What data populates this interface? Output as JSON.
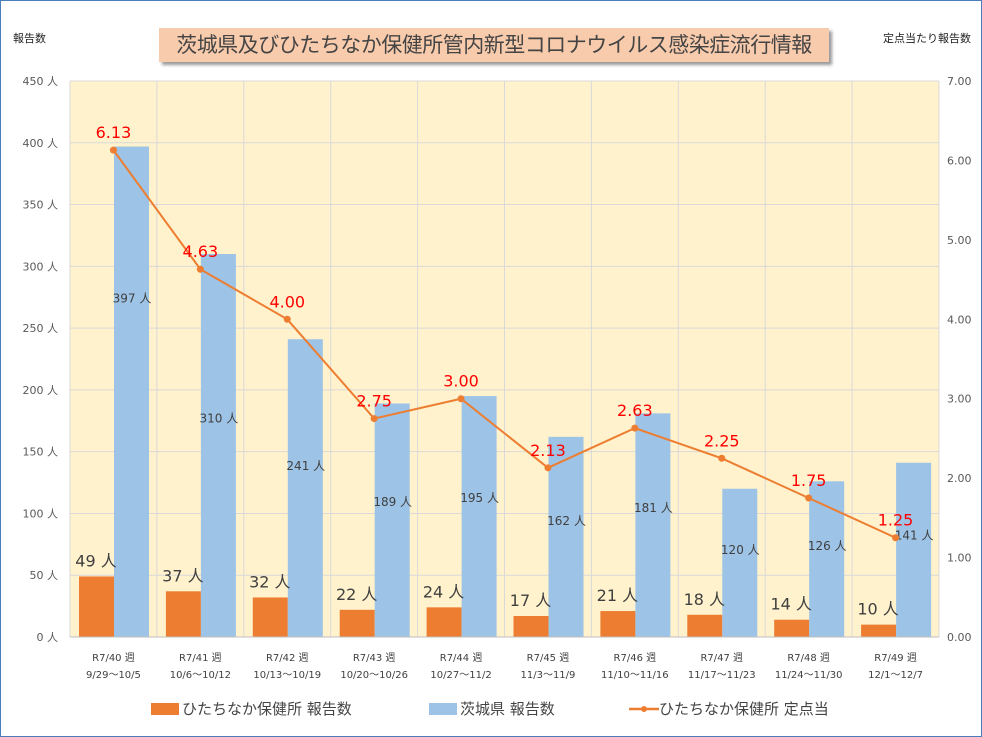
{
  "chart_data": {
    "type": "bar+line",
    "title": "茨城県及びひたちなか保健所管内新型コロナウイルス感染症流行情報",
    "ylabel_left": "報告数",
    "ylabel_right": "定点当たり報告数",
    "ylim_left": [
      0,
      450
    ],
    "ylim_right": [
      0,
      7
    ],
    "left_ticks": [
      "0 人",
      "50 人",
      "100 人",
      "150 人",
      "200 人",
      "250 人",
      "300 人",
      "350 人",
      "400 人",
      "450 人"
    ],
    "right_ticks": [
      "0.00",
      "1.00",
      "2.00",
      "3.00",
      "4.00",
      "5.00",
      "6.00",
      "7.00"
    ],
    "categories": [
      [
        "R7/40 週",
        "9/29～10/5"
      ],
      [
        "R7/41 週",
        "10/6～10/12"
      ],
      [
        "R7/42 週",
        "10/13～10/19"
      ],
      [
        "R7/43 週",
        "10/20～10/26"
      ],
      [
        "R7/44 週",
        "10/27～11/2"
      ],
      [
        "R7/45 週",
        "11/3～11/9"
      ],
      [
        "R7/46 週",
        "11/10～11/16"
      ],
      [
        "R7/47 週",
        "11/17～11/23"
      ],
      [
        "R7/48 週",
        "11/24～11/30"
      ],
      [
        "R7/49 週",
        "12/1～12/7"
      ]
    ],
    "series": [
      {
        "name": "ひたちなか保健所 報告数",
        "type": "bar",
        "axis": "left",
        "color": "#ed7d31",
        "values": [
          49,
          37,
          32,
          22,
          24,
          17,
          21,
          18,
          14,
          10
        ],
        "labels": [
          "49 人",
          "37 人",
          "32 人",
          "22 人",
          "24 人",
          "17 人",
          "21 人",
          "18 人",
          "14 人",
          "10 人"
        ]
      },
      {
        "name": "茨城県 報告数",
        "type": "bar",
        "axis": "left",
        "color": "#9dc3e6",
        "values": [
          397,
          310,
          241,
          189,
          195,
          162,
          181,
          120,
          126,
          141
        ],
        "labels": [
          "397 人",
          "310 人",
          "241 人",
          "189 人",
          "195 人",
          "162 人",
          "181 人",
          "120 人",
          "126 人",
          "141 人"
        ]
      },
      {
        "name": "ひたちなか保健所 定点当",
        "type": "line",
        "axis": "right",
        "color": "#ed7d31",
        "values": [
          6.13,
          4.63,
          4.0,
          2.75,
          3.0,
          2.13,
          2.63,
          2.25,
          1.75,
          1.25
        ],
        "labels": [
          "6.13",
          "4.63",
          "4.00",
          "2.75",
          "3.00",
          "2.13",
          "2.63",
          "2.25",
          "1.75",
          "1.25"
        ]
      }
    ],
    "plot_background": "#fff2cc",
    "grid": true,
    "legend": "bottom"
  }
}
